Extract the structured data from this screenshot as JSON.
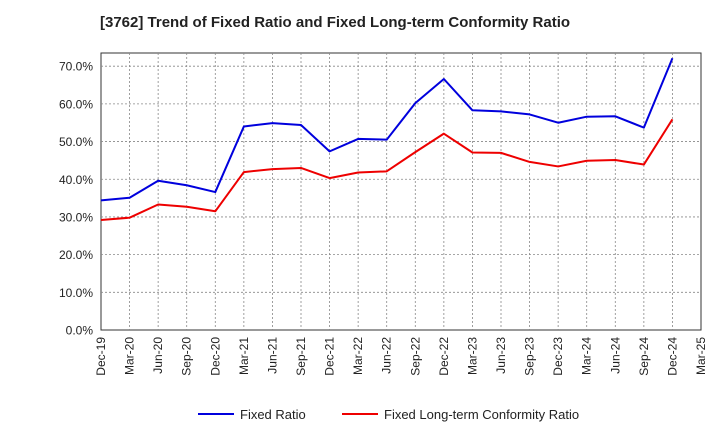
{
  "chart_data": {
    "type": "line",
    "title": "[3762]  Trend of Fixed Ratio and Fixed Long-term Conformity Ratio",
    "xlabel": "",
    "ylabel": "",
    "x_tick_labels": [
      "Dec-19",
      "Mar-20",
      "Jun-20",
      "Sep-20",
      "Dec-20",
      "Mar-21",
      "Jun-21",
      "Sep-21",
      "Dec-21",
      "Mar-22",
      "Jun-22",
      "Sep-22",
      "Dec-22",
      "Mar-23",
      "Jun-23",
      "Sep-23",
      "Dec-23",
      "Mar-24",
      "Jun-24",
      "Sep-24",
      "Dec-24",
      "Mar-25"
    ],
    "y_tick_labels": [
      "0.0%",
      "10.0%",
      "20.0%",
      "30.0%",
      "40.0%",
      "50.0%",
      "60.0%",
      "70.0%"
    ],
    "ylim": [
      0,
      73.5
    ],
    "grid": true,
    "legend_position": "bottom",
    "series": [
      {
        "name": "Fixed Ratio",
        "color": "#0000dd",
        "x": [
          "Dec-19",
          "Mar-20",
          "Jun-20",
          "Sep-20",
          "Dec-20",
          "Mar-21",
          "Jun-21",
          "Sep-21",
          "Dec-21",
          "Mar-22",
          "Jun-22",
          "Sep-22",
          "Dec-22",
          "Mar-23",
          "Jun-23",
          "Sep-23",
          "Dec-23",
          "Mar-24",
          "Jun-24",
          "Sep-24",
          "Dec-24"
        ],
        "values": [
          34.4,
          35.1,
          39.6,
          38.4,
          36.6,
          54.0,
          54.9,
          54.4,
          47.4,
          50.7,
          50.5,
          60.2,
          66.6,
          58.3,
          58.0,
          57.2,
          55.0,
          56.6,
          56.7,
          53.7,
          72.1
        ]
      },
      {
        "name": "Fixed Long-term Conformity Ratio",
        "color": "#ee0000",
        "x": [
          "Dec-19",
          "Mar-20",
          "Jun-20",
          "Sep-20",
          "Dec-20",
          "Mar-21",
          "Jun-21",
          "Sep-21",
          "Dec-21",
          "Mar-22",
          "Jun-22",
          "Sep-22",
          "Dec-22",
          "Mar-23",
          "Jun-23",
          "Sep-23",
          "Dec-23",
          "Mar-24",
          "Jun-24",
          "Sep-24",
          "Dec-24"
        ],
        "values": [
          29.2,
          29.8,
          33.3,
          32.7,
          31.5,
          41.9,
          42.7,
          43.0,
          40.3,
          41.8,
          42.1,
          47.2,
          52.1,
          47.1,
          47.0,
          44.6,
          43.4,
          44.9,
          45.1,
          43.9,
          55.9
        ]
      }
    ]
  }
}
